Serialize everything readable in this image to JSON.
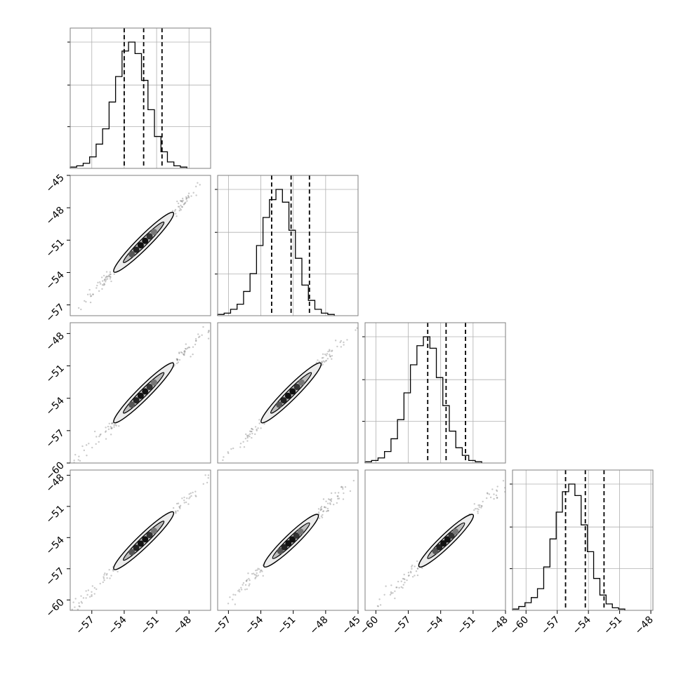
{
  "chart_data": {
    "type": "corner",
    "parameters": [
      {
        "xlim": [
          -59,
          -46
        ],
        "xticks": [
          -57,
          -54,
          -51,
          -48
        ],
        "yticks": [
          -45,
          -48,
          -51,
          -54,
          -57
        ]
      },
      {
        "xlim": [
          -58,
          -45
        ],
        "xticks": [
          -57,
          -54,
          -51,
          -48,
          -45
        ],
        "yticks": [
          -48,
          -51,
          -54,
          -57,
          -60
        ]
      },
      {
        "xlim": [
          -61,
          -48
        ],
        "xticks": [
          -60,
          -57,
          -54,
          -51,
          -48
        ],
        "yticks": [
          -48,
          -51,
          -54,
          -57,
          -60
        ]
      },
      {
        "xlim": [
          -61.3,
          -47.8
        ],
        "xticks": [
          -60,
          -57,
          -54,
          -51,
          -48
        ],
        "yticks": []
      }
    ],
    "ylims": [
      null,
      [
        -58,
        -45
      ],
      [
        -60,
        -47
      ],
      [
        -61,
        -47.5
      ]
    ],
    "marginals": [
      {
        "quantiles": [
          -54,
          -52.2,
          -50.5
        ],
        "hist_min": -59,
        "bin_width": 0.6,
        "counts": [
          1,
          2,
          4,
          9,
          19,
          31,
          52,
          72,
          92,
          99,
          90,
          69,
          46,
          25,
          13,
          5,
          2,
          1
        ]
      },
      {
        "quantiles": [
          -53,
          -51.2,
          -49.5
        ],
        "hist_min": -58,
        "bin_width": 0.6,
        "counts": [
          1,
          2,
          5,
          9,
          19,
          33,
          55,
          77,
          91,
          99,
          89,
          67,
          45,
          24,
          12,
          5,
          2,
          1
        ]
      },
      {
        "quantiles": [
          -55.2,
          -53.5,
          -51.7
        ],
        "hist_min": -61,
        "bin_width": 0.6,
        "counts": [
          1,
          2,
          4,
          9,
          19,
          34,
          55,
          77,
          92,
          99,
          90,
          67,
          45,
          25,
          12,
          6,
          2,
          1
        ]
      },
      {
        "quantiles": [
          -56.2,
          -54.3,
          -52.5
        ],
        "hist_min": -61.3,
        "bin_width": 0.6,
        "counts": [
          1,
          3,
          6,
          10,
          17,
          34,
          56,
          77,
          93,
          99,
          90,
          67,
          46,
          25,
          12,
          5,
          2,
          1
        ]
      }
    ],
    "joint": [
      {
        "row": 1,
        "col": 0,
        "mean": [
          -52.2,
          -51.2
        ],
        "xspan": 5.5
      },
      {
        "row": 2,
        "col": 0,
        "mean": [
          -52.2,
          -53.5
        ],
        "xspan": 5.5
      },
      {
        "row": 2,
        "col": 1,
        "mean": [
          -51.2,
          -53.5
        ],
        "xspan": 5.5
      },
      {
        "row": 3,
        "col": 0,
        "mean": [
          -52.2,
          -54.3
        ],
        "xspan": 5.5
      },
      {
        "row": 3,
        "col": 1,
        "mean": [
          -51.2,
          -54.3
        ],
        "xspan": 5.0
      },
      {
        "row": 3,
        "col": 2,
        "mean": [
          -53.5,
          -54.3
        ],
        "xspan": 5.0
      }
    ],
    "title": "",
    "xlabel": "",
    "ylabel": ""
  }
}
